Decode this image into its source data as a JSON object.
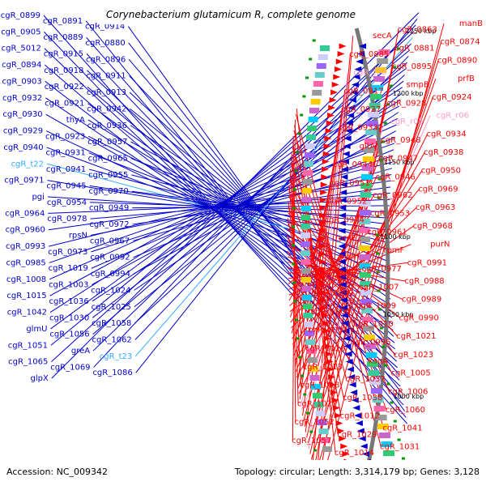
{
  "title": "Corynebacterium glutamicum R, complete genome",
  "accession": "Accession: NC_009342",
  "topology": "Topology: circular; Length: 3,314,179 bp; Genes: 3,128",
  "colors": {
    "plus": "#ff0000",
    "minus": "#0000cc",
    "rna_plus": "#ff99cc",
    "rna_minus": "#33aaff",
    "tick": "#009900",
    "backbone": "#777777"
  },
  "kbp_marks": [
    "950 kbp",
    "1000 kbp",
    "1050 kbp",
    "1100 kbp",
    "1150 kbp",
    "1200 kbp",
    "1250 kbp"
  ],
  "left_labels": [
    {
      "text": "cgR_0899",
      "type": "minus"
    },
    {
      "text": "cgR_0891",
      "type": "minus"
    },
    {
      "text": "cgR_0914",
      "type": "minus"
    },
    {
      "text": "cgR_0905",
      "type": "minus"
    },
    {
      "text": "cgR_0889",
      "type": "minus"
    },
    {
      "text": "cgR_0880",
      "type": "minus"
    },
    {
      "text": "cgR_5012",
      "type": "minus"
    },
    {
      "text": "cgR_0915",
      "type": "minus"
    },
    {
      "text": "cgR_0896",
      "type": "minus"
    },
    {
      "text": "cgR_0894",
      "type": "minus"
    },
    {
      "text": "cgR_0918",
      "type": "minus"
    },
    {
      "text": "cgR_0911",
      "type": "minus"
    },
    {
      "text": "cgR_0903",
      "type": "minus"
    },
    {
      "text": "cgR_0922",
      "type": "minus"
    },
    {
      "text": "cgR_0913",
      "type": "minus"
    },
    {
      "text": "cgR_0932",
      "type": "minus"
    },
    {
      "text": "cgR_0921",
      "type": "minus"
    },
    {
      "text": "cgR_0942",
      "type": "minus"
    },
    {
      "text": "cgR_0930",
      "type": "minus"
    },
    {
      "text": "thyA",
      "type": "minus"
    },
    {
      "text": "cgR_0936",
      "type": "minus"
    },
    {
      "text": "cgR_0929",
      "type": "minus"
    },
    {
      "text": "cgR_0923",
      "type": "minus"
    },
    {
      "text": "cgR_0957",
      "type": "minus"
    },
    {
      "text": "cgR_0940",
      "type": "minus"
    },
    {
      "text": "cgR_0931",
      "type": "minus"
    },
    {
      "text": "cgR_0965",
      "type": "minus"
    },
    {
      "text": "cgR_t22",
      "type": "rna_minus"
    },
    {
      "text": "cgR_0941",
      "type": "minus"
    },
    {
      "text": "cgR_0955",
      "type": "minus"
    },
    {
      "text": "cgR_0971",
      "type": "minus"
    },
    {
      "text": "cgR_0945",
      "type": "minus"
    },
    {
      "text": "cgR_0970",
      "type": "minus"
    },
    {
      "text": "pgi",
      "type": "minus"
    },
    {
      "text": "cgR_0954",
      "type": "minus"
    },
    {
      "text": "cgR_0949",
      "type": "minus"
    },
    {
      "text": "cgR_0964",
      "type": "minus"
    },
    {
      "text": "cgR_0978",
      "type": "minus"
    },
    {
      "text": "cgR_0972",
      "type": "minus"
    },
    {
      "text": "cgR_0960",
      "type": "minus"
    },
    {
      "text": "rpsN",
      "type": "minus"
    },
    {
      "text": "cgR_0967",
      "type": "minus"
    },
    {
      "text": "cgR_0993",
      "type": "minus"
    },
    {
      "text": "cgR_0973",
      "type": "minus"
    },
    {
      "text": "cgR_0992",
      "type": "minus"
    },
    {
      "text": "cgR_0985",
      "type": "minus"
    },
    {
      "text": "cgR_1019",
      "type": "minus"
    },
    {
      "text": "cgR_0994",
      "type": "minus"
    },
    {
      "text": "cgR_1008",
      "type": "minus"
    },
    {
      "text": "cgR_1003",
      "type": "minus"
    },
    {
      "text": "cgR_1024",
      "type": "minus"
    },
    {
      "text": "cgR_1015",
      "type": "minus"
    },
    {
      "text": "cgR_1036",
      "type": "minus"
    },
    {
      "text": "cgR_1025",
      "type": "minus"
    },
    {
      "text": "cgR_1042",
      "type": "minus"
    },
    {
      "text": "cgR_1030",
      "type": "minus"
    },
    {
      "text": "cgR_1058",
      "type": "minus"
    },
    {
      "text": "glmU",
      "type": "minus"
    },
    {
      "text": "cgR_1056",
      "type": "minus"
    },
    {
      "text": "cgR_1062",
      "type": "minus"
    },
    {
      "text": "cgR_1051",
      "type": "minus"
    },
    {
      "text": "greA",
      "type": "minus"
    },
    {
      "text": "cgR_t23",
      "type": "rna_minus"
    },
    {
      "text": "cgR_1065",
      "type": "minus"
    },
    {
      "text": "cgR_1069",
      "type": "minus"
    },
    {
      "text": "cgR_1086",
      "type": "minus"
    },
    {
      "text": "glpX",
      "type": "minus"
    }
  ],
  "right_labels": [
    {
      "text": "manB",
      "type": "plus"
    },
    {
      "text": "cgR_0863",
      "type": "plus"
    },
    {
      "text": "secA",
      "type": "plus"
    },
    {
      "text": "cgR_0874",
      "type": "plus"
    },
    {
      "text": "cgR_0881",
      "type": "plus"
    },
    {
      "text": "cgR_0885",
      "type": "plus"
    },
    {
      "text": "cgR_0890",
      "type": "plus"
    },
    {
      "text": "cgR_0895",
      "type": "plus"
    },
    {
      "text": "cgR_t20",
      "type": "rna_plus"
    },
    {
      "text": "prfB",
      "type": "plus"
    },
    {
      "text": "smpB",
      "type": "plus"
    },
    {
      "text": "cgR_0917",
      "type": "plus"
    },
    {
      "text": "cgR_0924",
      "type": "plus"
    },
    {
      "text": "cgR_0928",
      "type": "plus"
    },
    {
      "text": "cgR_0927",
      "type": "plus"
    },
    {
      "text": "cgR_r06",
      "type": "rna_plus"
    },
    {
      "text": "cgR_r05",
      "type": "rna_plus"
    },
    {
      "text": "cgR_0933",
      "type": "plus"
    },
    {
      "text": "cgR_0934",
      "type": "plus"
    },
    {
      "text": "cgR_0948",
      "type": "plus"
    },
    {
      "text": "gltA",
      "type": "plus"
    },
    {
      "text": "cgR_0938",
      "type": "plus"
    },
    {
      "text": "cgR_0947",
      "type": "plus"
    },
    {
      "text": "cgR_0944",
      "type": "plus"
    },
    {
      "text": "cgR_0950",
      "type": "plus"
    },
    {
      "text": "cgR_0946",
      "type": "plus"
    },
    {
      "text": "cgR_0951",
      "type": "plus"
    },
    {
      "text": "cgR_0969",
      "type": "plus"
    },
    {
      "text": "cgR_0962",
      "type": "plus"
    },
    {
      "text": "cgR_0952",
      "type": "plus"
    },
    {
      "text": "cgR_0963",
      "type": "plus"
    },
    {
      "text": "cgR_0953",
      "type": "plus"
    },
    {
      "text": "cgR_0974",
      "type": "plus"
    },
    {
      "text": "cgR_0968",
      "type": "plus"
    },
    {
      "text": "cgR_0961",
      "type": "plus"
    },
    {
      "text": "rpmE2",
      "type": "plus"
    },
    {
      "text": "purN",
      "type": "plus"
    },
    {
      "text": "rpmF",
      "type": "plus"
    },
    {
      "text": "purH",
      "type": "plus"
    },
    {
      "text": "cgR_0991",
      "type": "plus"
    },
    {
      "text": "cgR_0977",
      "type": "plus"
    },
    {
      "text": "cgR_0998",
      "type": "plus"
    },
    {
      "text": "cgR_0988",
      "type": "plus"
    },
    {
      "text": "cgR_1007",
      "type": "plus"
    },
    {
      "text": "cgR_0999",
      "type": "plus"
    },
    {
      "text": "cgR_0989",
      "type": "plus"
    },
    {
      "text": "cgR_1009",
      "type": "plus"
    },
    {
      "text": "cgR_1000",
      "type": "plus"
    },
    {
      "text": "cgR_0990",
      "type": "plus"
    },
    {
      "text": "cgR_1010",
      "type": "plus"
    },
    {
      "text": "cgR_1004",
      "type": "plus"
    },
    {
      "text": "cgR_1021",
      "type": "plus"
    },
    {
      "text": "cgR_0996",
      "type": "plus"
    },
    {
      "text": "cgR_1026",
      "type": "plus"
    },
    {
      "text": "cgR_1023",
      "type": "plus"
    },
    {
      "text": "ksgA",
      "type": "plus"
    },
    {
      "text": "cgR_1013",
      "type": "plus"
    },
    {
      "text": "cgR_1005",
      "type": "plus"
    },
    {
      "text": "cgR_1037",
      "type": "plus"
    },
    {
      "text": "cgR_1018",
      "type": "plus"
    },
    {
      "text": "cgR_1006",
      "type": "plus"
    },
    {
      "text": "cgR_1038",
      "type": "plus"
    },
    {
      "text": "cgR_1027",
      "type": "plus"
    },
    {
      "text": "cgR_1060",
      "type": "plus"
    },
    {
      "text": "cgR_1012",
      "type": "plus"
    },
    {
      "text": "cgR_1052",
      "type": "plus"
    },
    {
      "text": "cgR_1041",
      "type": "plus"
    },
    {
      "text": "cgR_1029",
      "type": "plus"
    },
    {
      "text": "cgR_1057",
      "type": "plus"
    },
    {
      "text": "cgR_1031",
      "type": "plus"
    },
    {
      "text": "cgR_1014",
      "type": "plus"
    }
  ]
}
